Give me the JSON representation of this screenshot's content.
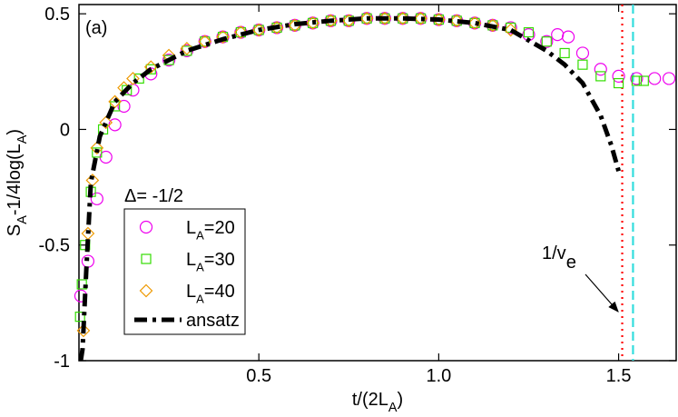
{
  "chart_data": {
    "type": "scatter-line",
    "panel_label": "(a)",
    "annotation": "Δ= -1/2",
    "vline_label": [
      "1/v",
      "e"
    ],
    "x_label": [
      "t/(2L",
      "A",
      ")"
    ],
    "y_label": [
      "S",
      "A",
      "-1/4log(L",
      "A",
      ")"
    ],
    "xlim": [
      0,
      1.66
    ],
    "ylim": [
      -1,
      0.54
    ],
    "xticks": [
      0.5,
      {
        "value": 1,
        "label": "1.0"
      },
      1.5
    ],
    "yticks": [
      -1,
      -0.5,
      0,
      0.5
    ],
    "vlines": [
      {
        "x": 1.51,
        "color": "#ff0000"
      },
      {
        "x": 1.54,
        "color": "#33dddd"
      }
    ],
    "series": [
      {
        "name": [
          "L",
          "A",
          "=20"
        ],
        "color": "#ee00ee",
        "marker": "circle",
        "x": [
          0.005,
          0.025,
          0.05,
          0.075,
          0.1,
          0.125,
          0.15,
          0.2,
          0.25,
          0.3,
          0.35,
          0.4,
          0.45,
          0.5,
          0.55,
          0.6,
          0.65,
          0.7,
          0.75,
          0.8,
          0.85,
          0.9,
          0.95,
          1.0,
          1.05,
          1.1,
          1.15,
          1.2,
          1.25,
          1.3,
          1.33,
          1.36,
          1.4,
          1.45,
          1.5,
          1.55,
          1.6,
          1.64
        ],
        "values": [
          -0.72,
          -0.57,
          -0.3,
          -0.12,
          0.02,
          0.1,
          0.17,
          0.24,
          0.3,
          0.34,
          0.38,
          0.4,
          0.42,
          0.43,
          0.44,
          0.45,
          0.46,
          0.47,
          0.47,
          0.48,
          0.48,
          0.48,
          0.48,
          0.475,
          0.47,
          0.46,
          0.45,
          0.44,
          0.41,
          0.38,
          0.41,
          0.4,
          0.33,
          0.26,
          0.23,
          0.22,
          0.22,
          0.22
        ]
      },
      {
        "name": [
          "L",
          "A",
          "=30"
        ],
        "color": "#33dd00",
        "marker": "square",
        "x": [
          0.003,
          0.008,
          0.017,
          0.033,
          0.05,
          0.067,
          0.1,
          0.133,
          0.167,
          0.2,
          0.25,
          0.3,
          0.35,
          0.4,
          0.45,
          0.5,
          0.55,
          0.6,
          0.65,
          0.7,
          0.75,
          0.8,
          0.85,
          0.9,
          0.95,
          1.0,
          1.05,
          1.1,
          1.15,
          1.2,
          1.25,
          1.3,
          1.35,
          1.4,
          1.45,
          1.5,
          1.55,
          1.57
        ],
        "values": [
          -0.81,
          -0.67,
          -0.5,
          -0.27,
          -0.1,
          0.0,
          0.1,
          0.17,
          0.22,
          0.26,
          0.3,
          0.34,
          0.38,
          0.4,
          0.42,
          0.43,
          0.44,
          0.45,
          0.46,
          0.47,
          0.47,
          0.48,
          0.48,
          0.48,
          0.48,
          0.475,
          0.47,
          0.46,
          0.45,
          0.44,
          0.42,
          0.38,
          0.33,
          0.28,
          0.23,
          0.2,
          0.21,
          0.21
        ]
      },
      {
        "name": [
          "L",
          "A",
          "=40"
        ],
        "color": "#ee9900",
        "marker": "diamond",
        "x": [
          0.0125,
          0.025,
          0.0375,
          0.05,
          0.075,
          0.1,
          0.125,
          0.15,
          0.2,
          0.25,
          0.3,
          0.35,
          0.4,
          0.45,
          0.5,
          0.55,
          0.6,
          0.65,
          0.7,
          0.75,
          0.8,
          0.85,
          0.9,
          0.95,
          1.0,
          1.05,
          1.1,
          1.15,
          1.2
        ],
        "values": [
          -0.87,
          -0.45,
          -0.22,
          -0.08,
          0.03,
          0.12,
          0.18,
          0.22,
          0.27,
          0.32,
          0.35,
          0.38,
          0.4,
          0.42,
          0.43,
          0.44,
          0.45,
          0.46,
          0.47,
          0.47,
          0.48,
          0.48,
          0.48,
          0.48,
          0.475,
          0.47,
          0.46,
          0.45,
          0.43
        ]
      },
      {
        "name": [
          "ansatz"
        ],
        "color": "#000000",
        "marker": "line",
        "x": [
          0.005,
          0.01,
          0.02,
          0.033,
          0.058,
          0.1,
          0.15,
          0.2,
          0.3,
          0.4,
          0.5,
          0.6,
          0.7,
          0.8,
          0.9,
          1.0,
          1.1,
          1.2,
          1.3,
          1.35,
          1.4,
          1.45,
          1.48,
          1.5
        ],
        "values": [
          -1,
          -0.95,
          -0.62,
          -0.23,
          -0.03,
          0.12,
          0.2,
          0.26,
          0.34,
          0.39,
          0.43,
          0.455,
          0.47,
          0.48,
          0.48,
          0.475,
          0.46,
          0.43,
          0.34,
          0.28,
          0.2,
          0.06,
          -0.07,
          -0.18
        ]
      }
    ]
  }
}
